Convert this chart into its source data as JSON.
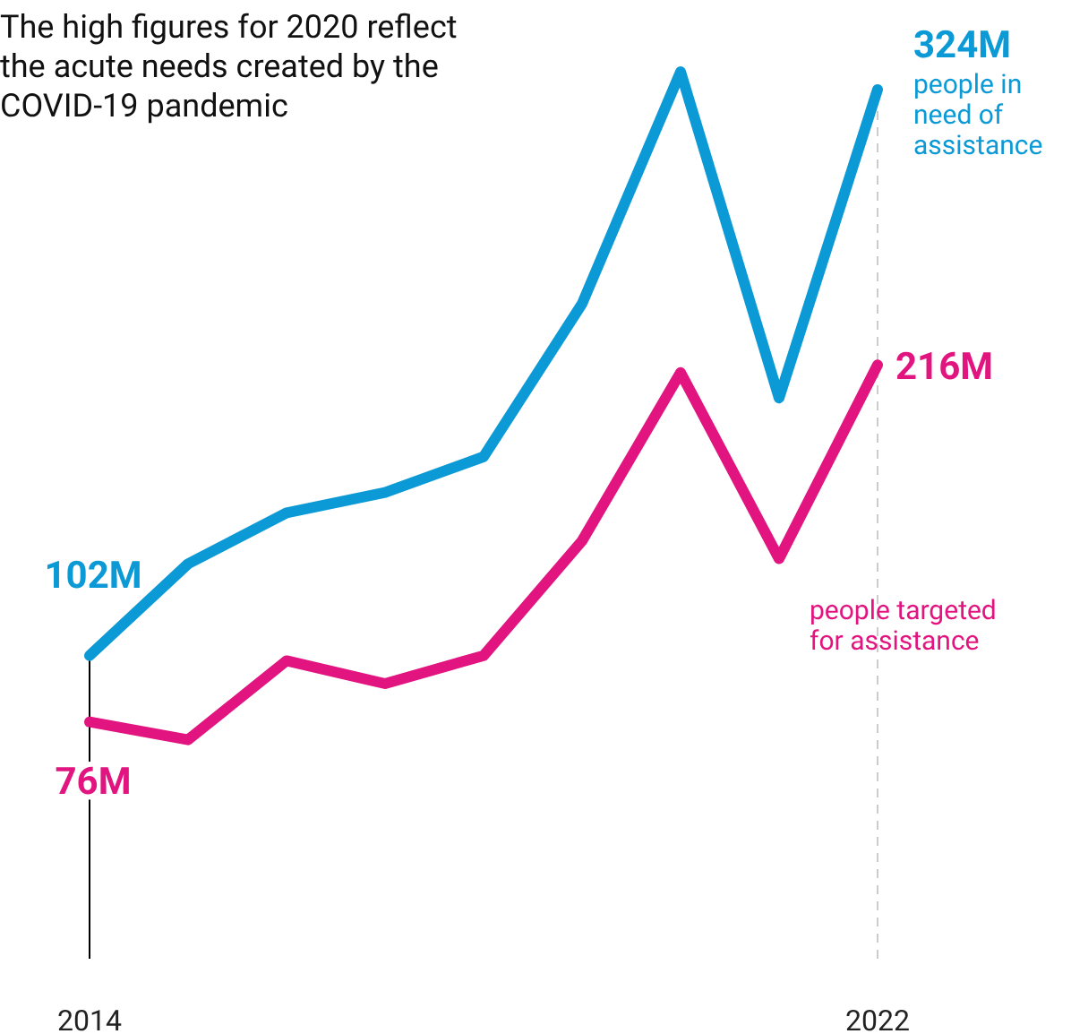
{
  "chart_data": {
    "type": "line",
    "title": "The high figures for 2020 reflect the acute needs created by the COVID-19 pandemic",
    "x": [
      2014,
      2015,
      2016,
      2017,
      2018,
      2019,
      2020,
      2021,
      2022
    ],
    "xlim": [
      2014,
      2022
    ],
    "xticks": [
      2014,
      2022
    ],
    "series": [
      {
        "name": "people in need of assistance",
        "color": "#0b9ad6",
        "values": [
          102,
          138,
          158,
          166,
          180,
          240,
          331,
          203,
          324
        ],
        "value_labels": [
          "102M",
          null,
          null,
          null,
          null,
          null,
          null,
          null,
          "324M"
        ]
      },
      {
        "name": "people targeted for assistance",
        "color": "#e2147f",
        "values": [
          76,
          69,
          100,
          91,
          102,
          147,
          213,
          140,
          216
        ],
        "value_labels": [
          "76M",
          null,
          null,
          null,
          null,
          null,
          null,
          null,
          "216M"
        ]
      }
    ],
    "ref_lines": [
      {
        "axis": "x",
        "value": 2022,
        "color": "#cccccc",
        "line_style": "dashed"
      }
    ],
    "legend": false,
    "grid": false,
    "marker": "none",
    "line_style": "solid"
  }
}
